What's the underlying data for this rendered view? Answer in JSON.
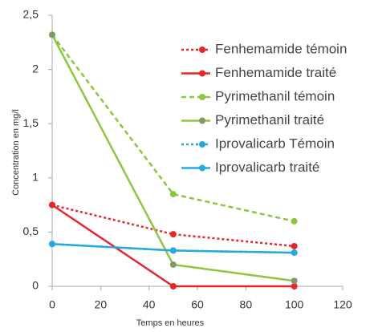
{
  "chart_data": {
    "type": "line",
    "x_label": "Temps en heures",
    "y_label": "Concentration en mg/l",
    "xlim": [
      0,
      120
    ],
    "xticks": [
      0,
      20,
      40,
      60,
      80,
      100,
      120
    ],
    "ylim": [
      0,
      2.5
    ],
    "yticks": [
      0,
      {
        "value": 0.5,
        "label": "0,5"
      },
      1,
      {
        "value": 1.5,
        "label": "1,5"
      },
      2,
      {
        "value": 2.5,
        "label": "2,5"
      }
    ],
    "grid": false,
    "legend": "upper right",
    "x": [
      0,
      50,
      100
    ],
    "series": [
      {
        "name": "Fenhemamide témoin",
        "color": "#e8262a",
        "dash": "dotted",
        "values": [
          0.75,
          0.48,
          0.37
        ]
      },
      {
        "name": "Fenhemamide traité",
        "color": "#e8262a",
        "dash": "solid",
        "values": [
          0.75,
          0,
          0
        ]
      },
      {
        "name": "Pyrimethanil témoin",
        "color": "#8dc63f",
        "dash": "dashed",
        "values": [
          2.32,
          0.85,
          0.6
        ]
      },
      {
        "name": "Pyrimethanil traité",
        "color": "#8dc63f",
        "marker_color": "#7e9a6a",
        "dash": "solid",
        "values": [
          2.32,
          0.2,
          0.05
        ]
      },
      {
        "name": "Iprovalicarb Témoin",
        "color": "#29a8e0",
        "dash": "dotted",
        "values": [
          0.39,
          0.33,
          0.31
        ]
      },
      {
        "name": "Iprovalicarb traité",
        "color": "#29a8e0",
        "dash": "solid",
        "values": [
          0.39,
          0.33,
          0.31
        ]
      }
    ]
  }
}
